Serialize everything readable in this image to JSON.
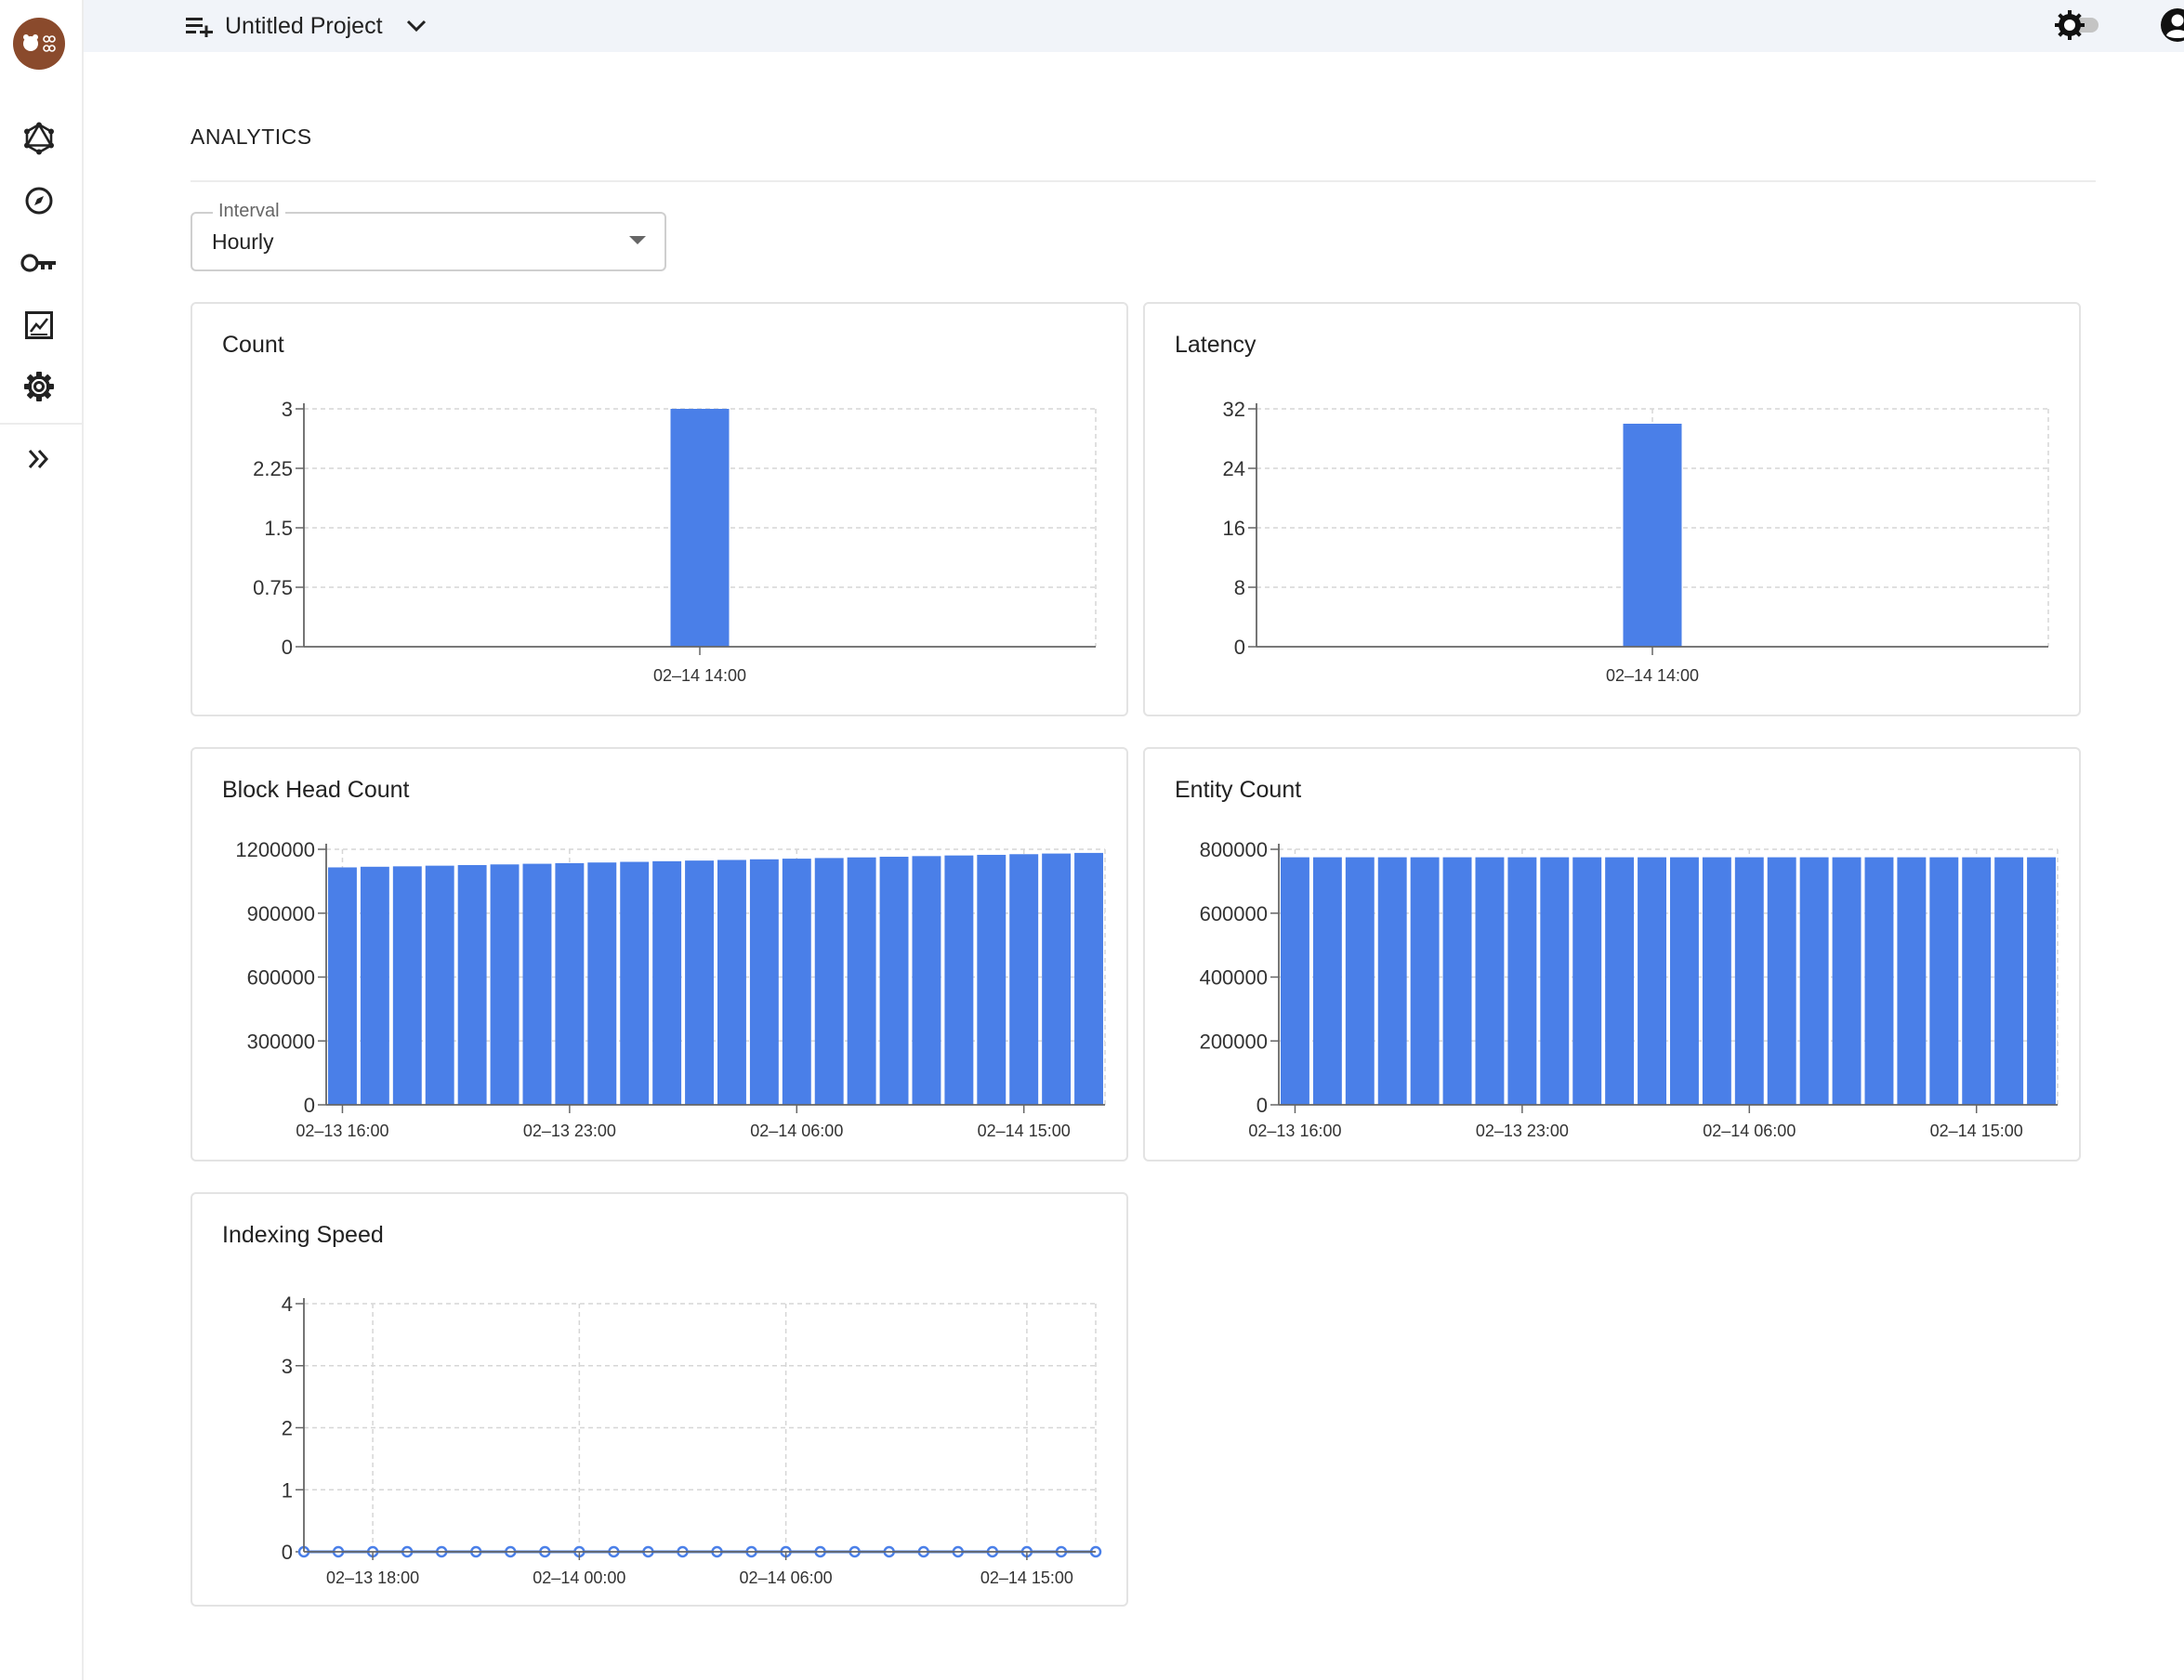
{
  "app": {
    "logo_alt": "🐻⛓"
  },
  "sidebar": {
    "items": [
      {
        "name": "graphql",
        "icon": "graphql-icon"
      },
      {
        "name": "explorer",
        "icon": "compass-icon"
      },
      {
        "name": "api-keys",
        "icon": "key-icon"
      },
      {
        "name": "analytics",
        "icon": "chart-icon"
      },
      {
        "name": "settings",
        "icon": "gear-icon"
      }
    ],
    "expand_icon": "double-chevron-right-icon"
  },
  "topbar": {
    "project_name": "Untitled Project"
  },
  "page": {
    "title": "ANALYTICS"
  },
  "interval": {
    "label": "Interval",
    "value": "Hourly"
  },
  "colors": {
    "bar": "#4a7fe8",
    "grid": "#d6d6d6",
    "axis": "#666666"
  },
  "chart_data": [
    {
      "id": "count",
      "type": "bar",
      "title": "Count",
      "categories": [
        "02–14 14:00"
      ],
      "values": [
        3
      ],
      "yticks": [
        "0",
        "0.75",
        "1.5",
        "2.25",
        "3"
      ],
      "ylim": [
        0,
        3
      ]
    },
    {
      "id": "latency",
      "type": "bar",
      "title": "Latency",
      "categories": [
        "02–14 14:00"
      ],
      "values": [
        30
      ],
      "yticks": [
        "0",
        "8",
        "16",
        "24",
        "32"
      ],
      "ylim": [
        0,
        32
      ]
    },
    {
      "id": "block-head-count",
      "type": "bar",
      "title": "Block Head Count",
      "xticks": [
        "02–13 16:00",
        "02–13 23:00",
        "02–14 06:00",
        "02–14 15:00"
      ],
      "values": [
        1115000,
        1118000,
        1120000,
        1123000,
        1126000,
        1129000,
        1132000,
        1135000,
        1138000,
        1141000,
        1144000,
        1147000,
        1150000,
        1153000,
        1156000,
        1159000,
        1162000,
        1165000,
        1168000,
        1171000,
        1174000,
        1177000,
        1180000,
        1183000
      ],
      "yticks": [
        "0",
        "300000",
        "600000",
        "900000",
        "1200000"
      ],
      "ylim": [
        0,
        1200000
      ]
    },
    {
      "id": "entity-count",
      "type": "bar",
      "title": "Entity Count",
      "xticks": [
        "02–13 16:00",
        "02–13 23:00",
        "02–14 06:00",
        "02–14 15:00"
      ],
      "values": [
        775000,
        775000,
        775000,
        775000,
        775000,
        775000,
        775000,
        775000,
        775000,
        775000,
        775000,
        775000,
        775000,
        775000,
        775000,
        775000,
        775000,
        775000,
        775000,
        775000,
        775000,
        775000,
        775000,
        775000
      ],
      "yticks": [
        "0",
        "200000",
        "400000",
        "600000",
        "800000"
      ],
      "ylim": [
        0,
        800000
      ]
    },
    {
      "id": "indexing-speed",
      "type": "line",
      "title": "Indexing Speed",
      "xticks": [
        "02–13 18:00",
        "02–14 00:00",
        "02–14 06:00",
        "02–14 15:00"
      ],
      "values": [
        0,
        0,
        0,
        0,
        0,
        0,
        0,
        0,
        0,
        0,
        0,
        0,
        0,
        0,
        0,
        0,
        0,
        0,
        0,
        0,
        0,
        0,
        0,
        0
      ],
      "yticks": [
        "0",
        "1",
        "2",
        "3",
        "4"
      ],
      "ylim": [
        0,
        4
      ]
    }
  ]
}
